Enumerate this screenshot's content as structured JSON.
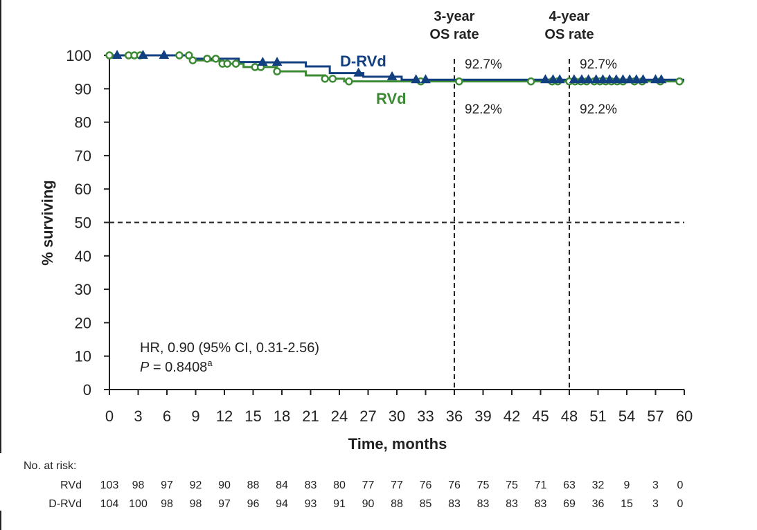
{
  "chart_data": {
    "type": "line",
    "subtype": "kaplan-meier",
    "xlabel": "Time, months",
    "ylabel": "% surviving",
    "xlim": [
      0,
      60
    ],
    "ylim": [
      0,
      100
    ],
    "xticks": [
      0,
      3,
      6,
      9,
      12,
      15,
      18,
      21,
      24,
      27,
      30,
      33,
      36,
      39,
      42,
      45,
      48,
      51,
      54,
      57,
      60
    ],
    "yticks": [
      0,
      10,
      20,
      30,
      40,
      50,
      60,
      70,
      80,
      90,
      100
    ],
    "grid": false,
    "legend": "inline labels near curves",
    "series": [
      {
        "name": "D-RVd",
        "color": "#123f7f",
        "marker": "triangle",
        "steps": [
          [
            0,
            100
          ],
          [
            8.5,
            99
          ],
          [
            13.5,
            98
          ],
          [
            16,
            97.9
          ],
          [
            20.5,
            96.7
          ],
          [
            23,
            94.7
          ],
          [
            26.5,
            93.6
          ],
          [
            30.5,
            92.7
          ],
          [
            60,
            92.7
          ]
        ],
        "censored": [
          [
            0.8,
            100
          ],
          [
            3.5,
            100
          ],
          [
            5.7,
            100
          ],
          [
            16,
            97.9
          ],
          [
            17.5,
            97.9
          ],
          [
            26,
            94.7
          ],
          [
            29.5,
            93.6
          ],
          [
            32,
            92.7
          ],
          [
            33,
            92.7
          ],
          [
            45.5,
            92.7
          ],
          [
            46.3,
            92.7
          ],
          [
            47,
            92.7
          ],
          [
            48.5,
            92.7
          ],
          [
            49.3,
            92.7
          ],
          [
            50,
            92.7
          ],
          [
            50.8,
            92.7
          ],
          [
            51.5,
            92.7
          ],
          [
            52.2,
            92.7
          ],
          [
            52.9,
            92.7
          ],
          [
            53.6,
            92.7
          ],
          [
            54.3,
            92.7
          ],
          [
            55,
            92.7
          ],
          [
            55.7,
            92.7
          ],
          [
            57,
            92.7
          ],
          [
            57.6,
            92.7
          ]
        ]
      },
      {
        "name": "RVd",
        "color": "#3d8a35",
        "marker": "circle",
        "steps": [
          [
            0,
            100
          ],
          [
            8.5,
            98.5
          ],
          [
            11.5,
            97.5
          ],
          [
            14,
            96.5
          ],
          [
            17.5,
            95.2
          ],
          [
            20.5,
            94
          ],
          [
            22.5,
            93
          ],
          [
            24.5,
            92.2
          ],
          [
            60,
            92.2
          ]
        ],
        "censored": [
          [
            0,
            100
          ],
          [
            2,
            100
          ],
          [
            2.6,
            100
          ],
          [
            3.2,
            100
          ],
          [
            7.3,
            100
          ],
          [
            8.3,
            100
          ],
          [
            8.7,
            98.5
          ],
          [
            10.2,
            99
          ],
          [
            11.1,
            99
          ],
          [
            11.8,
            97.5
          ],
          [
            12.3,
            97.5
          ],
          [
            13.2,
            97.5
          ],
          [
            15.2,
            96.5
          ],
          [
            15.8,
            96.5
          ],
          [
            17.5,
            95.2
          ],
          [
            22.5,
            93
          ],
          [
            23.3,
            93
          ],
          [
            25,
            92.2
          ],
          [
            32.5,
            92.2
          ],
          [
            36.5,
            92.2
          ],
          [
            44,
            92.2
          ],
          [
            46.2,
            92.2
          ],
          [
            46.8,
            92.2
          ],
          [
            48,
            92.2
          ],
          [
            48.6,
            92.2
          ],
          [
            49.2,
            92.2
          ],
          [
            49.8,
            92.2
          ],
          [
            50.6,
            92.2
          ],
          [
            51.2,
            92.2
          ],
          [
            51.8,
            92.2
          ],
          [
            52.4,
            92.2
          ],
          [
            53,
            92.2
          ],
          [
            53.6,
            92.2
          ],
          [
            54.8,
            92.2
          ],
          [
            55.6,
            92.2
          ],
          [
            57.5,
            92.2
          ],
          [
            59.5,
            92.2
          ]
        ]
      }
    ],
    "reference_lines": [
      {
        "axis": "x",
        "value": 36,
        "style": "dashed",
        "label": "3-year\nOS rate",
        "values": [
          "92.7%",
          "92.2%"
        ]
      },
      {
        "axis": "x",
        "value": 48,
        "style": "dashed",
        "label": "4-year\nOS rate",
        "values": [
          "92.7%",
          "92.2%"
        ]
      },
      {
        "axis": "y",
        "value": 50,
        "style": "dashed"
      }
    ],
    "annotations": {
      "hr_text": "HR, 0.90 (95% CI, 0.31-2.56)",
      "p_label": "P",
      "p_value": " = 0.8408",
      "p_superscript": "a"
    },
    "risk_table": {
      "title": "No. at risk:",
      "times": [
        0,
        3,
        6,
        9,
        12,
        15,
        18,
        21,
        24,
        27,
        30,
        33,
        36,
        39,
        42,
        45,
        48,
        51,
        54,
        57,
        60
      ],
      "rows": [
        {
          "label": "RVd",
          "values": [
            103,
            98,
            97,
            92,
            90,
            88,
            84,
            83,
            80,
            77,
            77,
            76,
            76,
            75,
            75,
            71,
            63,
            32,
            9,
            3,
            0
          ]
        },
        {
          "label": "D-RVd",
          "values": [
            104,
            100,
            98,
            98,
            97,
            96,
            94,
            93,
            91,
            90,
            88,
            85,
            83,
            83,
            83,
            83,
            69,
            36,
            15,
            3,
            0
          ]
        }
      ]
    }
  }
}
